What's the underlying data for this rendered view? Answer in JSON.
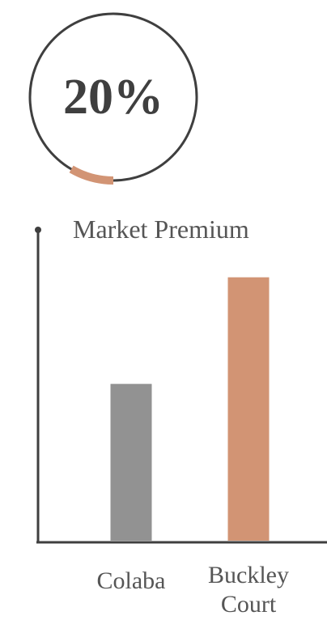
{
  "gauge": {
    "value_text": "20%",
    "fraction": 0.2,
    "colors": {
      "ring": "#3f3f3f",
      "progress": "#d29474",
      "text": "#3f3f3f"
    }
  },
  "chart_data": {
    "type": "bar",
    "title": "Market Premium",
    "xlabel": "",
    "ylabel": "",
    "categories": [
      [
        "Colaba"
      ],
      [
        "Buckley",
        "Court"
      ]
    ],
    "values": [
      1.0,
      1.68
    ],
    "ylim": [
      0,
      1.9
    ],
    "grid": false,
    "legend": "none",
    "colors": [
      "#929292",
      "#d29474"
    ],
    "axis_color": "#3f3f3f",
    "label_color": "#555555"
  }
}
